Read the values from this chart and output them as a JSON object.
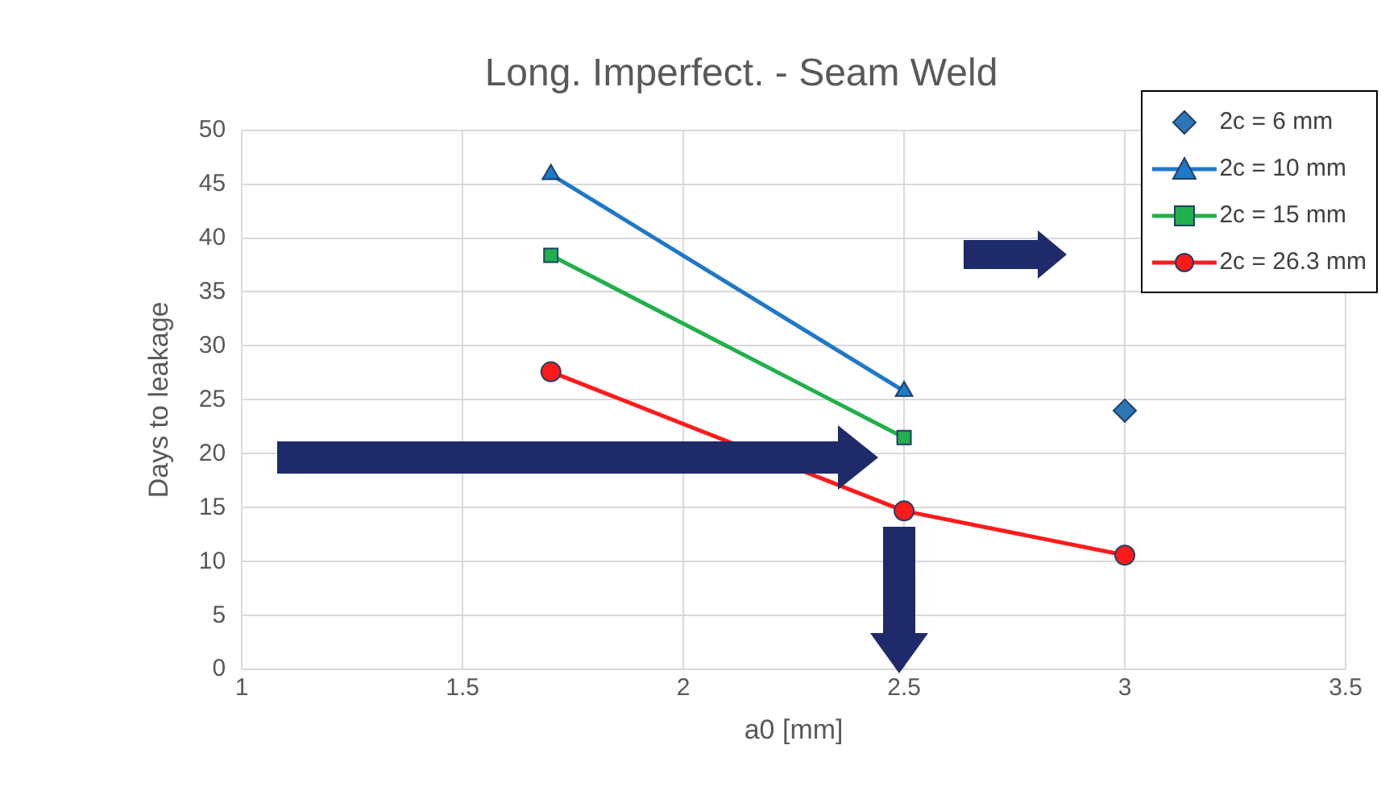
{
  "chart_data": {
    "type": "line",
    "title": "Long. Imperfect. - Seam Weld",
    "xlabel": "a0 [mm]",
    "ylabel": "Days to leakage",
    "xlim": [
      1,
      3.5
    ],
    "xticks": [
      1,
      1.5,
      2,
      2.5,
      3,
      3.5
    ],
    "ylim": [
      0,
      50
    ],
    "yticks": [
      0,
      5,
      10,
      15,
      20,
      25,
      30,
      35,
      40,
      45,
      50
    ],
    "grid": true,
    "legend": "top right",
    "series": [
      {
        "name": "2c = 6 mm",
        "type": "scatter",
        "marker": "diamond",
        "color": "#2e75b6",
        "x": [
          3
        ],
        "values": [
          24
        ]
      },
      {
        "name": "2c = 10 mm",
        "marker": "triangle",
        "color": "#1f78c8",
        "x": [
          1.7,
          2.5
        ],
        "values": [
          45.9,
          25.8
        ]
      },
      {
        "name": "2c = 15 mm",
        "marker": "square",
        "color": "#21b04b",
        "x": [
          1.7,
          2.5
        ],
        "values": [
          38.4,
          21.5
        ]
      },
      {
        "name": "2c = 26.3 mm",
        "marker": "circle",
        "color": "#ff1a1a",
        "x": [
          1.7,
          2.5,
          3
        ],
        "values": [
          27.6,
          14.7,
          10.6
        ]
      }
    ]
  }
}
